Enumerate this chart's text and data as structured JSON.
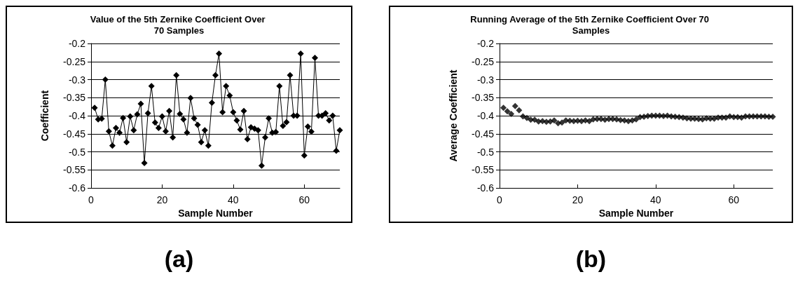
{
  "chart_data": [
    {
      "type": "line",
      "title": "Value of the 5th Zernike Coefficient Over 70 Samples",
      "xlabel": "Sample Number",
      "ylabel": "Coefficient",
      "x": [
        1,
        2,
        3,
        4,
        5,
        6,
        7,
        8,
        9,
        10,
        11,
        12,
        13,
        14,
        15,
        16,
        17,
        18,
        19,
        20,
        21,
        22,
        23,
        24,
        25,
        26,
        27,
        28,
        29,
        30,
        31,
        32,
        33,
        34,
        35,
        36,
        37,
        38,
        39,
        40,
        41,
        42,
        43,
        44,
        45,
        46,
        47,
        48,
        49,
        50,
        51,
        52,
        53,
        54,
        55,
        56,
        57,
        58,
        59,
        60,
        61,
        62,
        63,
        64,
        65,
        66,
        67,
        68,
        69,
        70
      ],
      "series": [
        {
          "color": "#000000",
          "values": [
            -0.378,
            -0.41,
            -0.408,
            -0.3,
            -0.443,
            -0.483,
            -0.434,
            -0.447,
            -0.406,
            -0.473,
            -0.402,
            -0.44,
            -0.396,
            -0.367,
            -0.531,
            -0.393,
            -0.318,
            -0.419,
            -0.434,
            -0.402,
            -0.443,
            -0.387,
            -0.46,
            -0.288,
            -0.395,
            -0.41,
            -0.447,
            -0.351,
            -0.407,
            -0.425,
            -0.473,
            -0.44,
            -0.483,
            -0.364,
            -0.288,
            -0.228,
            -0.39,
            -0.318,
            -0.344,
            -0.39,
            -0.413,
            -0.438,
            -0.387,
            -0.465,
            -0.432,
            -0.436,
            -0.44,
            -0.538,
            -0.46,
            -0.407,
            -0.447,
            -0.445,
            -0.318,
            -0.428,
            -0.418,
            -0.288,
            -0.4,
            -0.4,
            -0.228,
            -0.51,
            -0.43,
            -0.444,
            -0.24,
            -0.4,
            -0.4,
            -0.393,
            -0.413,
            -0.4,
            -0.497,
            -0.44
          ]
        }
      ],
      "xlim": [
        0,
        70
      ],
      "xticks": [
        0,
        20,
        40,
        60
      ],
      "ylim": [
        -0.6,
        -0.2
      ],
      "yticks": [
        -0.6,
        -0.55,
        -0.5,
        -0.45,
        -0.4,
        -0.35,
        -0.3,
        -0.25,
        -0.2
      ],
      "grid": "y",
      "marker": "diamond",
      "line_style": "solid",
      "annotations": [
        "(a)"
      ]
    },
    {
      "type": "scatter",
      "title": "Running Average of the 5th Zernike Coefficient Over 70 Samples",
      "xlabel": "Sample Number",
      "ylabel": "Average Coefficient",
      "x": [
        1,
        2,
        3,
        4,
        5,
        6,
        7,
        8,
        9,
        10,
        11,
        12,
        13,
        14,
        15,
        16,
        17,
        18,
        19,
        20,
        21,
        22,
        23,
        24,
        25,
        26,
        27,
        28,
        29,
        30,
        31,
        32,
        33,
        34,
        35,
        36,
        37,
        38,
        39,
        40,
        41,
        42,
        43,
        44,
        45,
        46,
        47,
        48,
        49,
        50,
        51,
        52,
        53,
        54,
        55,
        56,
        57,
        58,
        59,
        60,
        61,
        62,
        63,
        64,
        65,
        66,
        67,
        68,
        69,
        70
      ],
      "series": [
        {
          "color": "#000000",
          "values": [
            -0.378,
            -0.388,
            -0.395,
            -0.373,
            -0.385,
            -0.402,
            -0.406,
            -0.411,
            -0.411,
            -0.416,
            -0.415,
            -0.417,
            -0.416,
            -0.413,
            -0.421,
            -0.419,
            -0.413,
            -0.414,
            -0.415,
            -0.414,
            -0.415,
            -0.413,
            -0.415,
            -0.41,
            -0.409,
            -0.409,
            -0.411,
            -0.409,
            -0.409,
            -0.41,
            -0.412,
            -0.413,
            -0.415,
            -0.413,
            -0.41,
            -0.404,
            -0.403,
            -0.401,
            -0.4,
            -0.4,
            -0.4,
            -0.401,
            -0.4,
            -0.402,
            -0.403,
            -0.404,
            -0.405,
            -0.407,
            -0.408,
            -0.408,
            -0.409,
            -0.41,
            -0.407,
            -0.408,
            -0.408,
            -0.405,
            -0.405,
            -0.405,
            -0.402,
            -0.404,
            -0.404,
            -0.405,
            -0.402,
            -0.402,
            -0.402,
            -0.402,
            -0.402,
            -0.402,
            -0.403,
            -0.403
          ]
        }
      ],
      "xlim": [
        0,
        70
      ],
      "xticks": [
        0,
        20,
        40,
        60
      ],
      "ylim": [
        -0.6,
        -0.2
      ],
      "yticks": [
        -0.6,
        -0.55,
        -0.5,
        -0.45,
        -0.4,
        -0.35,
        -0.3,
        -0.25,
        -0.2
      ],
      "grid": "y",
      "marker": "diamond",
      "annotations": [
        "(b)"
      ]
    }
  ]
}
